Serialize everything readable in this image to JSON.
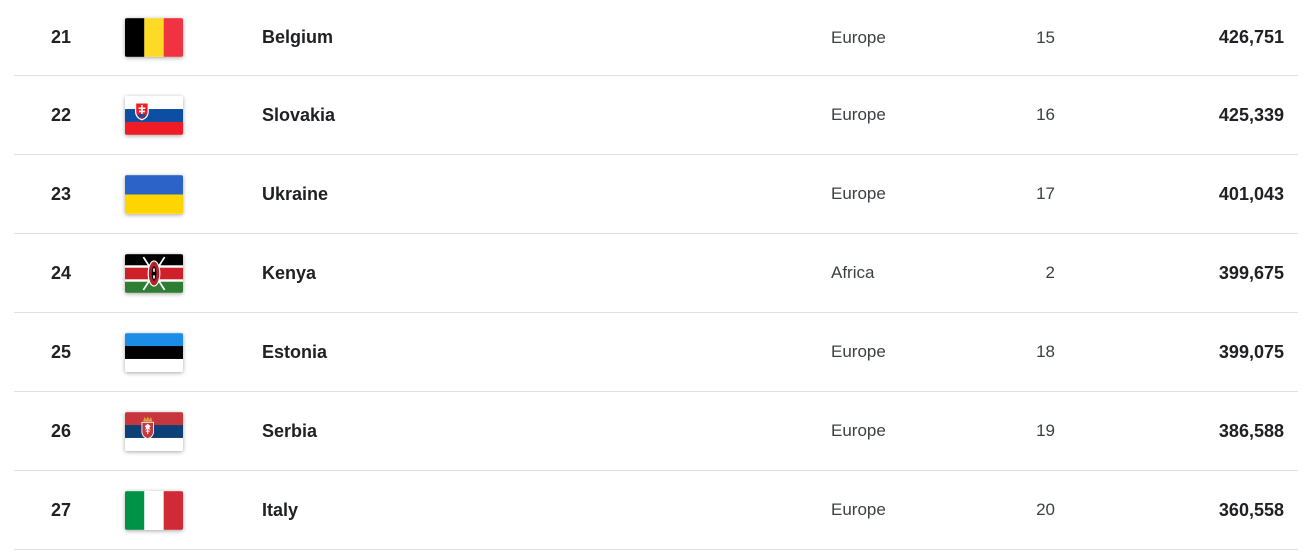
{
  "table": {
    "rows": [
      {
        "rank": "21",
        "flag": "belgium",
        "country": "Belgium",
        "continent": "Europe",
        "continent_rank": "15",
        "value": "426,751"
      },
      {
        "rank": "22",
        "flag": "slovakia",
        "country": "Slovakia",
        "continent": "Europe",
        "continent_rank": "16",
        "value": "425,339"
      },
      {
        "rank": "23",
        "flag": "ukraine",
        "country": "Ukraine",
        "continent": "Europe",
        "continent_rank": "17",
        "value": "401,043"
      },
      {
        "rank": "24",
        "flag": "kenya",
        "country": "Kenya",
        "continent": "Africa",
        "continent_rank": "2",
        "value": "399,675"
      },
      {
        "rank": "25",
        "flag": "estonia",
        "country": "Estonia",
        "continent": "Europe",
        "continent_rank": "18",
        "value": "399,075"
      },
      {
        "rank": "26",
        "flag": "serbia",
        "country": "Serbia",
        "continent": "Europe",
        "continent_rank": "19",
        "value": "386,588"
      },
      {
        "rank": "27",
        "flag": "italy",
        "country": "Italy",
        "continent": "Europe",
        "continent_rank": "20",
        "value": "360,558"
      }
    ]
  },
  "colors": {
    "divider": "#e0e0e0",
    "text_primary": "#202124",
    "text_secondary": "#3c4043",
    "background": "#ffffff"
  }
}
